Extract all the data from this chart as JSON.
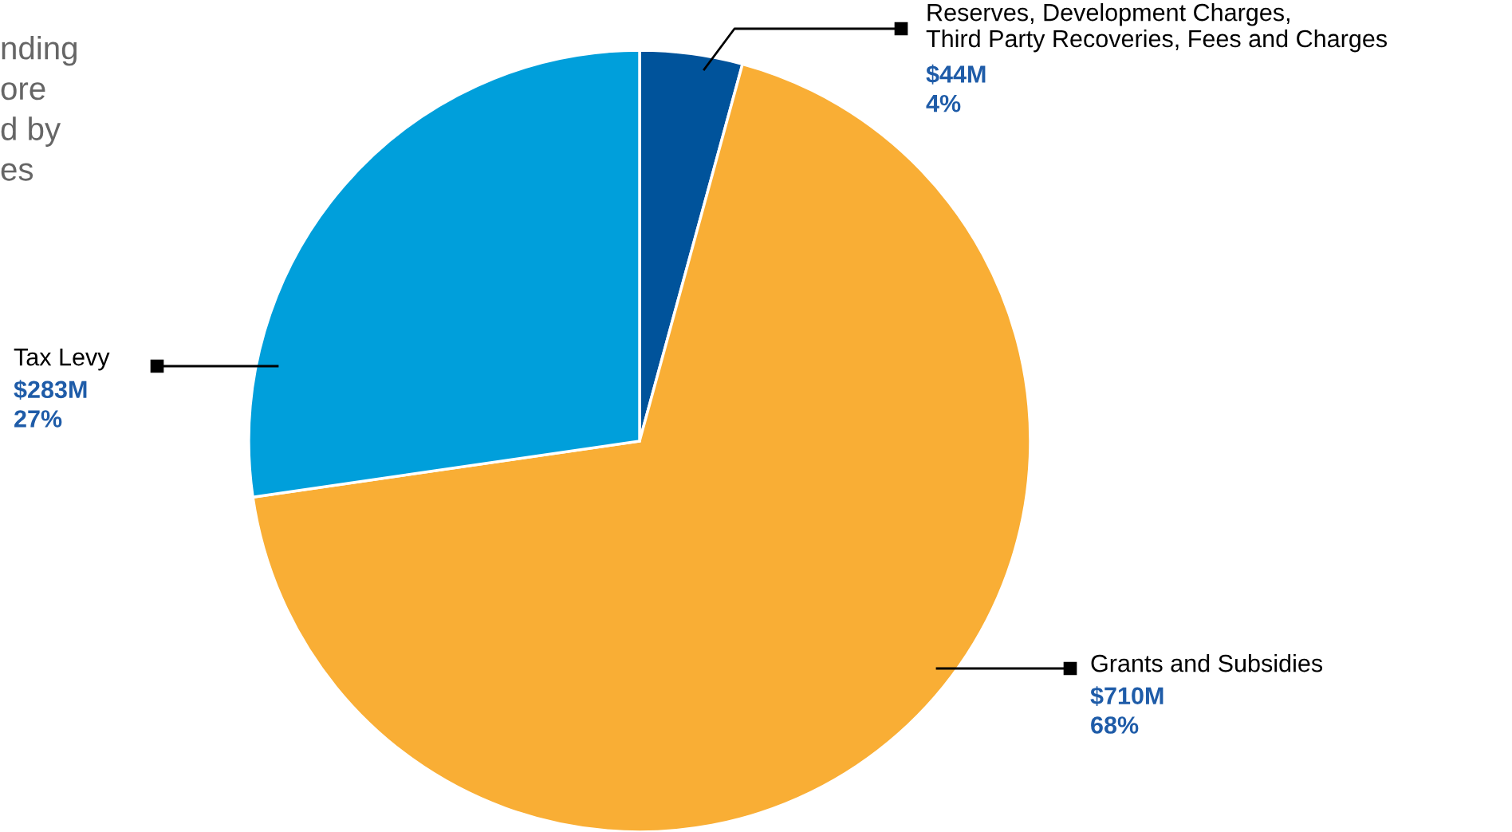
{
  "chart_data": {
    "type": "pie",
    "categories": [
      "Reserves, Development Charges,\nThird Party Recoveries, Fees and Charges",
      "Grants and Subsidies",
      "Tax Levy"
    ],
    "values": [
      44,
      710,
      283
    ],
    "colors": [
      "#00539b",
      "#f9ae35",
      "#009fdb"
    ],
    "value_labels": [
      "$44M",
      "$710M",
      "$283M"
    ],
    "annotations": [
      "nding\nore\nd by\nes",
      "4%",
      "68%",
      "27%"
    ],
    "legend": false
  }
}
